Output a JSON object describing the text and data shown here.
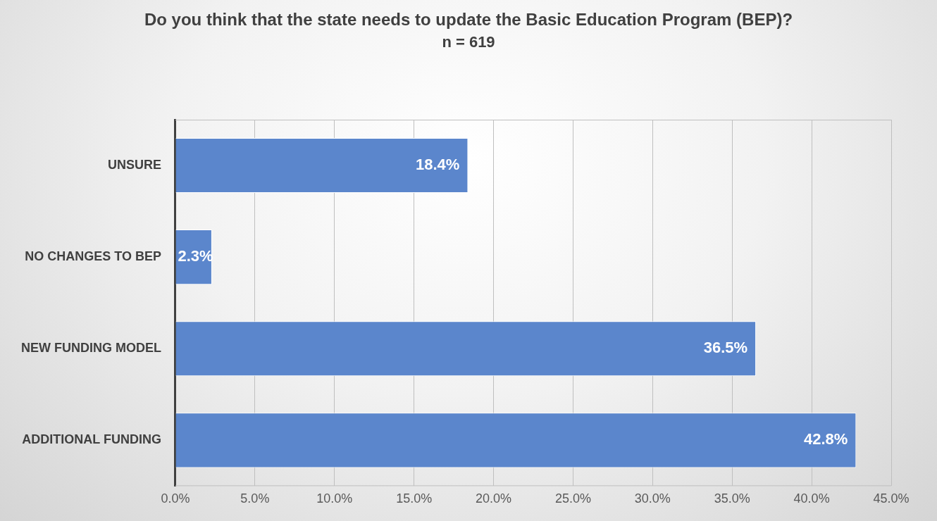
{
  "chart_data": {
    "type": "bar",
    "orientation": "horizontal",
    "title": "Do you think that the state needs to update the Basic Education Program (BEP)?",
    "subtitle": "n = 619",
    "categories": [
      "UNSURE",
      "NO CHANGES TO BEP",
      "NEW FUNDING MODEL",
      "ADDITIONAL FUNDING"
    ],
    "values": [
      18.4,
      2.3,
      36.5,
      42.8
    ],
    "value_labels": [
      "18.4%",
      "2.3%",
      "36.5%",
      "42.8%"
    ],
    "color": "#5b86cc",
    "xlim": [
      0,
      45
    ],
    "xticks": [
      {
        "value": 0,
        "label": "0.0%"
      },
      {
        "value": 5,
        "label": "5.0%"
      },
      {
        "value": 10,
        "label": "10.0%"
      },
      {
        "value": 15,
        "label": "15.0%"
      },
      {
        "value": 20,
        "label": "20.0%"
      },
      {
        "value": 25,
        "label": "25.0%"
      },
      {
        "value": 30,
        "label": "30.0%"
      },
      {
        "value": 35,
        "label": "35.0%"
      },
      {
        "value": 40,
        "label": "40.0%"
      },
      {
        "value": 45,
        "label": "45.0%"
      }
    ],
    "grid": "x",
    "legend": false
  }
}
